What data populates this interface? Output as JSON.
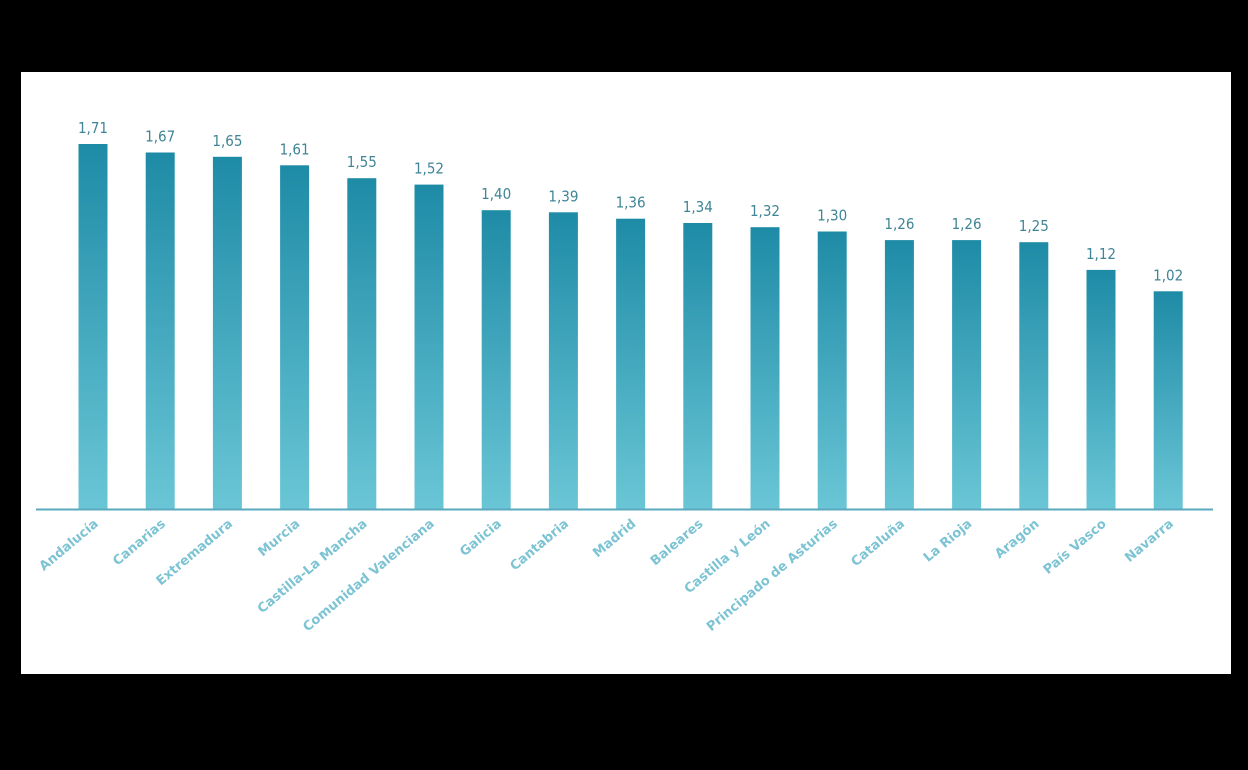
{
  "chart_data": {
    "type": "bar",
    "title": "",
    "xlabel": "",
    "ylabel": "",
    "ylim": [
      0,
      1.71
    ],
    "grid": false,
    "legend": "none",
    "categories": [
      "Andalucía",
      "Canarias",
      "Extremadura",
      "Murcia",
      "Castilla-La Mancha",
      "Comunidad Valenciana",
      "Galicia",
      "Cantabria",
      "Madrid",
      "Baleares",
      "Castilla y León",
      "Principado de Asturias",
      "Cataluña",
      "La Rioja",
      "Aragón",
      "País Vasco",
      "Navarra"
    ],
    "values": [
      1.71,
      1.67,
      1.65,
      1.61,
      1.55,
      1.52,
      1.4,
      1.39,
      1.36,
      1.34,
      1.32,
      1.3,
      1.26,
      1.26,
      1.25,
      1.12,
      1.02
    ],
    "value_labels": [
      "1,71",
      "1,67",
      "1,65",
      "1,61",
      "1,55",
      "1,52",
      "1,40",
      "1,39",
      "1,36",
      "1,34",
      "1,32",
      "1,30",
      "1,26",
      "1,26",
      "1,25",
      "1,12",
      "1,02"
    ],
    "colors": {
      "bar_top": "#1e8ba6",
      "bar_bottom": "#6ac6d6",
      "axis": "#5aa9bf",
      "value_label": "#3f8596",
      "category_label": "#7cc3d3"
    }
  }
}
